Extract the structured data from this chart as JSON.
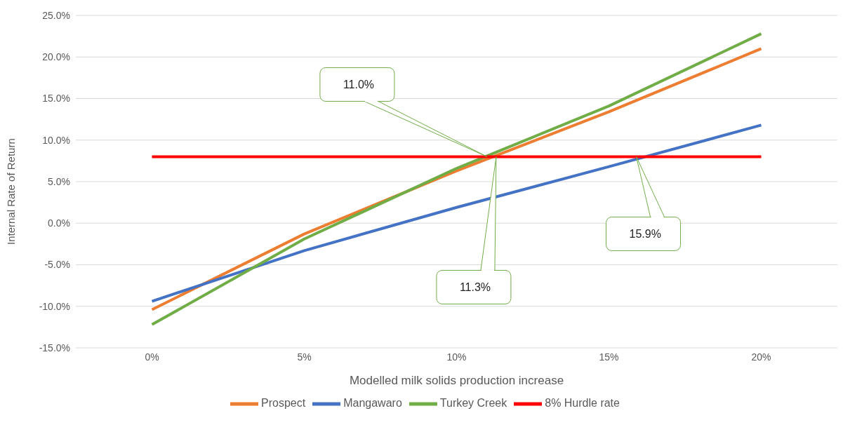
{
  "chart_data": {
    "type": "line",
    "xlabel": "Modelled milk solids production increase",
    "ylabel": "Internal Rate of Return",
    "x": [
      0,
      5,
      10,
      15,
      20
    ],
    "xlim": [
      -2.5,
      22.5
    ],
    "xticks": [
      {
        "value": 0,
        "label": "0%"
      },
      {
        "value": 5,
        "label": "5%"
      },
      {
        "value": 10,
        "label": "10%"
      },
      {
        "value": 15,
        "label": "15%"
      },
      {
        "value": 20,
        "label": "20%"
      }
    ],
    "ylim": [
      -15,
      25
    ],
    "yticks": [
      {
        "value": -15,
        "label": "-15.0%"
      },
      {
        "value": -10,
        "label": "-10.0%"
      },
      {
        "value": -5,
        "label": "-5.0%"
      },
      {
        "value": 0,
        "label": "0.0%"
      },
      {
        "value": 5,
        "label": "5.0%"
      },
      {
        "value": 10,
        "label": "10.0%"
      },
      {
        "value": 15,
        "label": "15.0%"
      },
      {
        "value": 20,
        "label": "20.0%"
      },
      {
        "value": 25,
        "label": "25.0%"
      }
    ],
    "series": [
      {
        "name": "Prospect",
        "color": "#ed7d31",
        "values": [
          -10.4,
          -1.3,
          6.3,
          13.4,
          21.0
        ]
      },
      {
        "name": "Mangawaro",
        "color": "#4472c4",
        "values": [
          -9.4,
          -3.3,
          1.9,
          6.8,
          11.8
        ]
      },
      {
        "name": "Turkey Creek",
        "color": "#70ad47",
        "values": [
          -12.2,
          -1.9,
          6.6,
          14.1,
          22.8
        ]
      },
      {
        "name": "8% Hurdle rate",
        "color": "#ff0000",
        "values": [
          8,
          8,
          8,
          8,
          8
        ]
      }
    ],
    "annotations": [
      {
        "text": "11.0%",
        "x": 11.0,
        "y": 8
      },
      {
        "text": "11.3%",
        "x": 11.3,
        "y": 8
      },
      {
        "text": "15.9%",
        "x": 15.9,
        "y": 8
      }
    ],
    "grid": "y",
    "legend": "bottom",
    "marker": "none",
    "line_style": "solid"
  }
}
